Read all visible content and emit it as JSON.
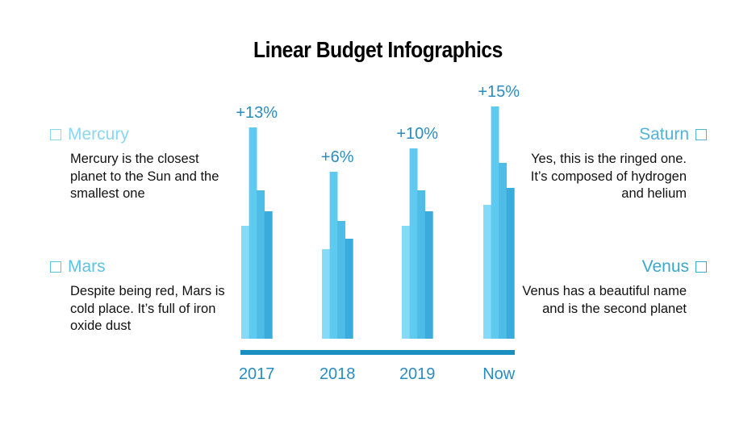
{
  "title": "Linear Budget Infographics",
  "left_items": [
    {
      "heading": "Mercury",
      "text": "Mercury is the closest planet to the Sun and the smallest one",
      "color": "#8ad8f0"
    },
    {
      "heading": "Mars",
      "text": "Despite being red, Mars is cold place. It’s full of iron oxide dust",
      "color": "#5cc2e4"
    }
  ],
  "right_items": [
    {
      "heading": "Saturn",
      "text": "Yes, this is the ringed one. It’s composed of hydrogen and helium",
      "color": "#4fb3d8"
    },
    {
      "heading": "Venus",
      "text": "Venus has a beautiful name and is the second planet",
      "color": "#3aa8d0"
    }
  ],
  "chart_data": {
    "type": "bar",
    "categories": [
      "2017",
      "2018",
      "2019",
      "Now"
    ],
    "labels": [
      "+13%",
      "+6%",
      "+10%",
      "+15%"
    ],
    "series_colors": [
      "#85daf7",
      "#5fcaf0",
      "#4dbce6",
      "#3aabdb"
    ],
    "series": [
      {
        "values": [
          140,
          111,
          140,
          166
        ]
      },
      {
        "values": [
          262,
          207,
          236,
          288
        ]
      },
      {
        "values": [
          184,
          146,
          184,
          218
        ]
      },
      {
        "values": [
          158,
          124,
          158,
          187
        ]
      }
    ],
    "axis_color": "#1a8fc0",
    "grid": false
  }
}
